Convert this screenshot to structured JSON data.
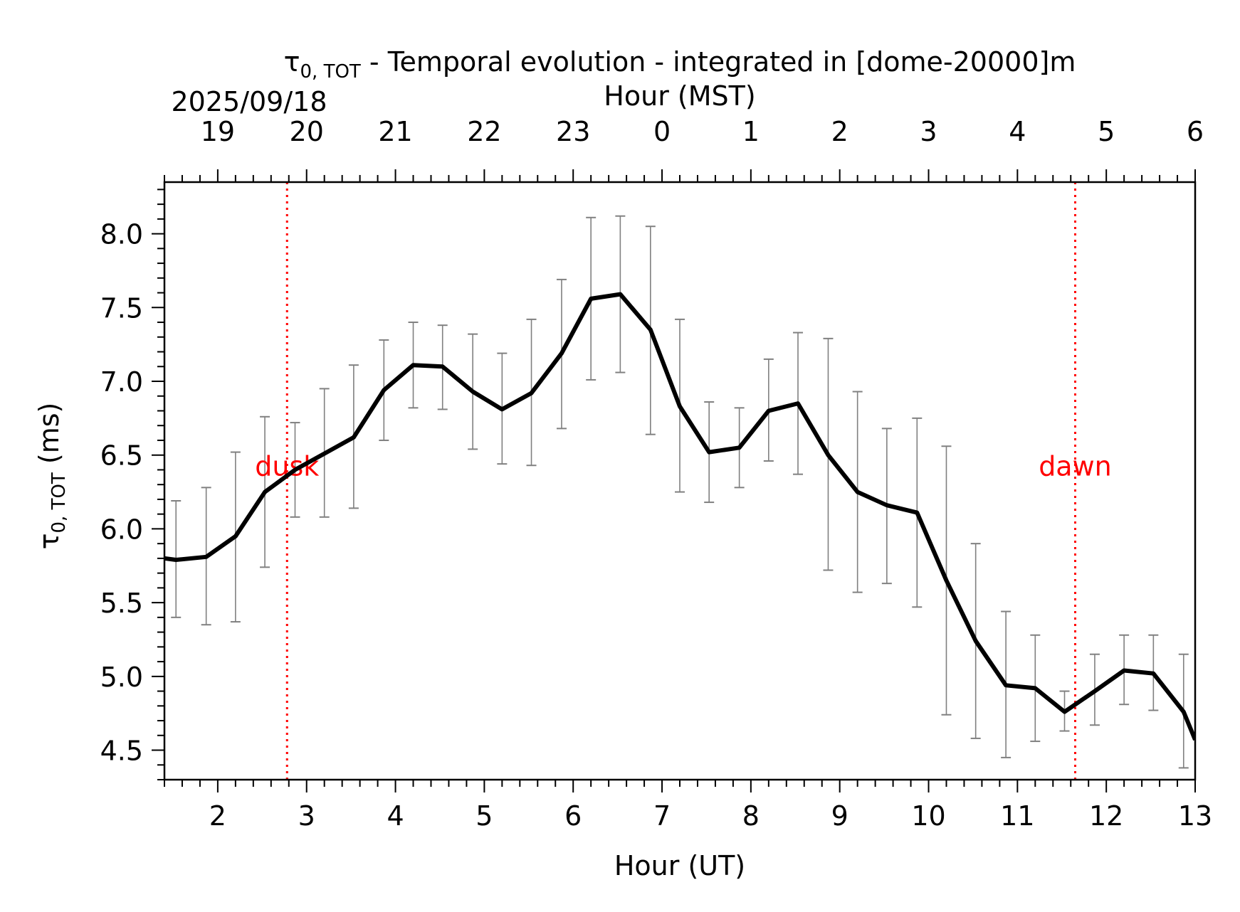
{
  "title": {
    "symbol": "τ",
    "subscript": "0, TOT",
    "rest": " - Temporal evolution - integrated in [dome-20000]m"
  },
  "date_label": "2025/09/18",
  "top_axis_label": "Hour (MST)",
  "ylabel": {
    "symbol": "τ",
    "subscript": "0, TOT",
    "rest": " (ms)"
  },
  "markers": [
    {
      "label": "dusk",
      "x": 2.78,
      "color": "#ff0000"
    },
    {
      "label": "dawn",
      "x": 11.65,
      "color": "#ff0000"
    }
  ],
  "chart_data": {
    "type": "line",
    "xlabel": "Hour (UT)",
    "xlim": [
      1.4,
      13.0
    ],
    "ylim": [
      4.3,
      8.35
    ],
    "x_ticks": [
      2,
      3,
      4,
      5,
      6,
      7,
      8,
      9,
      10,
      11,
      12,
      13
    ],
    "y_ticks": [
      4.5,
      5.0,
      5.5,
      6.0,
      6.5,
      7.0,
      7.5,
      8.0
    ],
    "top_axis": {
      "label": "Hour (MST)",
      "ticks_ut": [
        2,
        3,
        4,
        5,
        6,
        7,
        8,
        9,
        10,
        11,
        12,
        13
      ],
      "tick_labels": [
        "19",
        "20",
        "21",
        "22",
        "23",
        "0",
        "1",
        "2",
        "3",
        "4",
        "5",
        "6"
      ]
    },
    "line_color": "#000000",
    "errorbar_color": "#808080",
    "series": [
      {
        "x": [
          1.4,
          1.53,
          1.87,
          2.2,
          2.53,
          2.87,
          3.2,
          3.53,
          3.87,
          4.2,
          4.53,
          4.87,
          5.2,
          5.53,
          5.87,
          6.2,
          6.53,
          6.87,
          7.2,
          7.53,
          7.87,
          8.2,
          8.53,
          8.87,
          9.2,
          9.53,
          9.87,
          10.2,
          10.53,
          10.87,
          11.2,
          11.53,
          11.87,
          12.2,
          12.53,
          12.87,
          13.0
        ],
        "y": [
          5.8,
          5.79,
          5.81,
          5.95,
          6.25,
          6.4,
          6.51,
          6.62,
          6.94,
          7.11,
          7.1,
          6.93,
          6.81,
          6.92,
          7.19,
          7.56,
          7.59,
          7.35,
          6.83,
          6.52,
          6.55,
          6.8,
          6.85,
          6.5,
          6.25,
          6.16,
          6.11,
          5.65,
          5.24,
          4.94,
          4.92,
          4.76,
          4.9,
          5.04,
          5.02,
          4.76,
          4.57
        ],
        "err_low": [
          null,
          5.4,
          5.35,
          5.37,
          5.74,
          6.08,
          6.08,
          6.14,
          6.6,
          6.82,
          6.81,
          6.54,
          6.44,
          6.43,
          6.68,
          7.01,
          7.06,
          6.64,
          6.25,
          6.18,
          6.28,
          6.46,
          6.37,
          5.72,
          5.57,
          5.63,
          5.47,
          4.74,
          4.58,
          4.45,
          4.56,
          4.63,
          4.67,
          4.81,
          4.77,
          4.38,
          null
        ],
        "err_high": [
          null,
          6.19,
          6.28,
          6.52,
          6.76,
          6.72,
          6.95,
          7.11,
          7.28,
          7.4,
          7.38,
          7.32,
          7.19,
          7.42,
          7.69,
          8.11,
          8.12,
          8.05,
          7.42,
          6.86,
          6.82,
          7.15,
          7.33,
          7.29,
          6.93,
          6.68,
          6.75,
          6.56,
          5.9,
          5.44,
          5.28,
          4.9,
          5.15,
          5.28,
          5.28,
          5.15,
          null
        ]
      }
    ]
  }
}
